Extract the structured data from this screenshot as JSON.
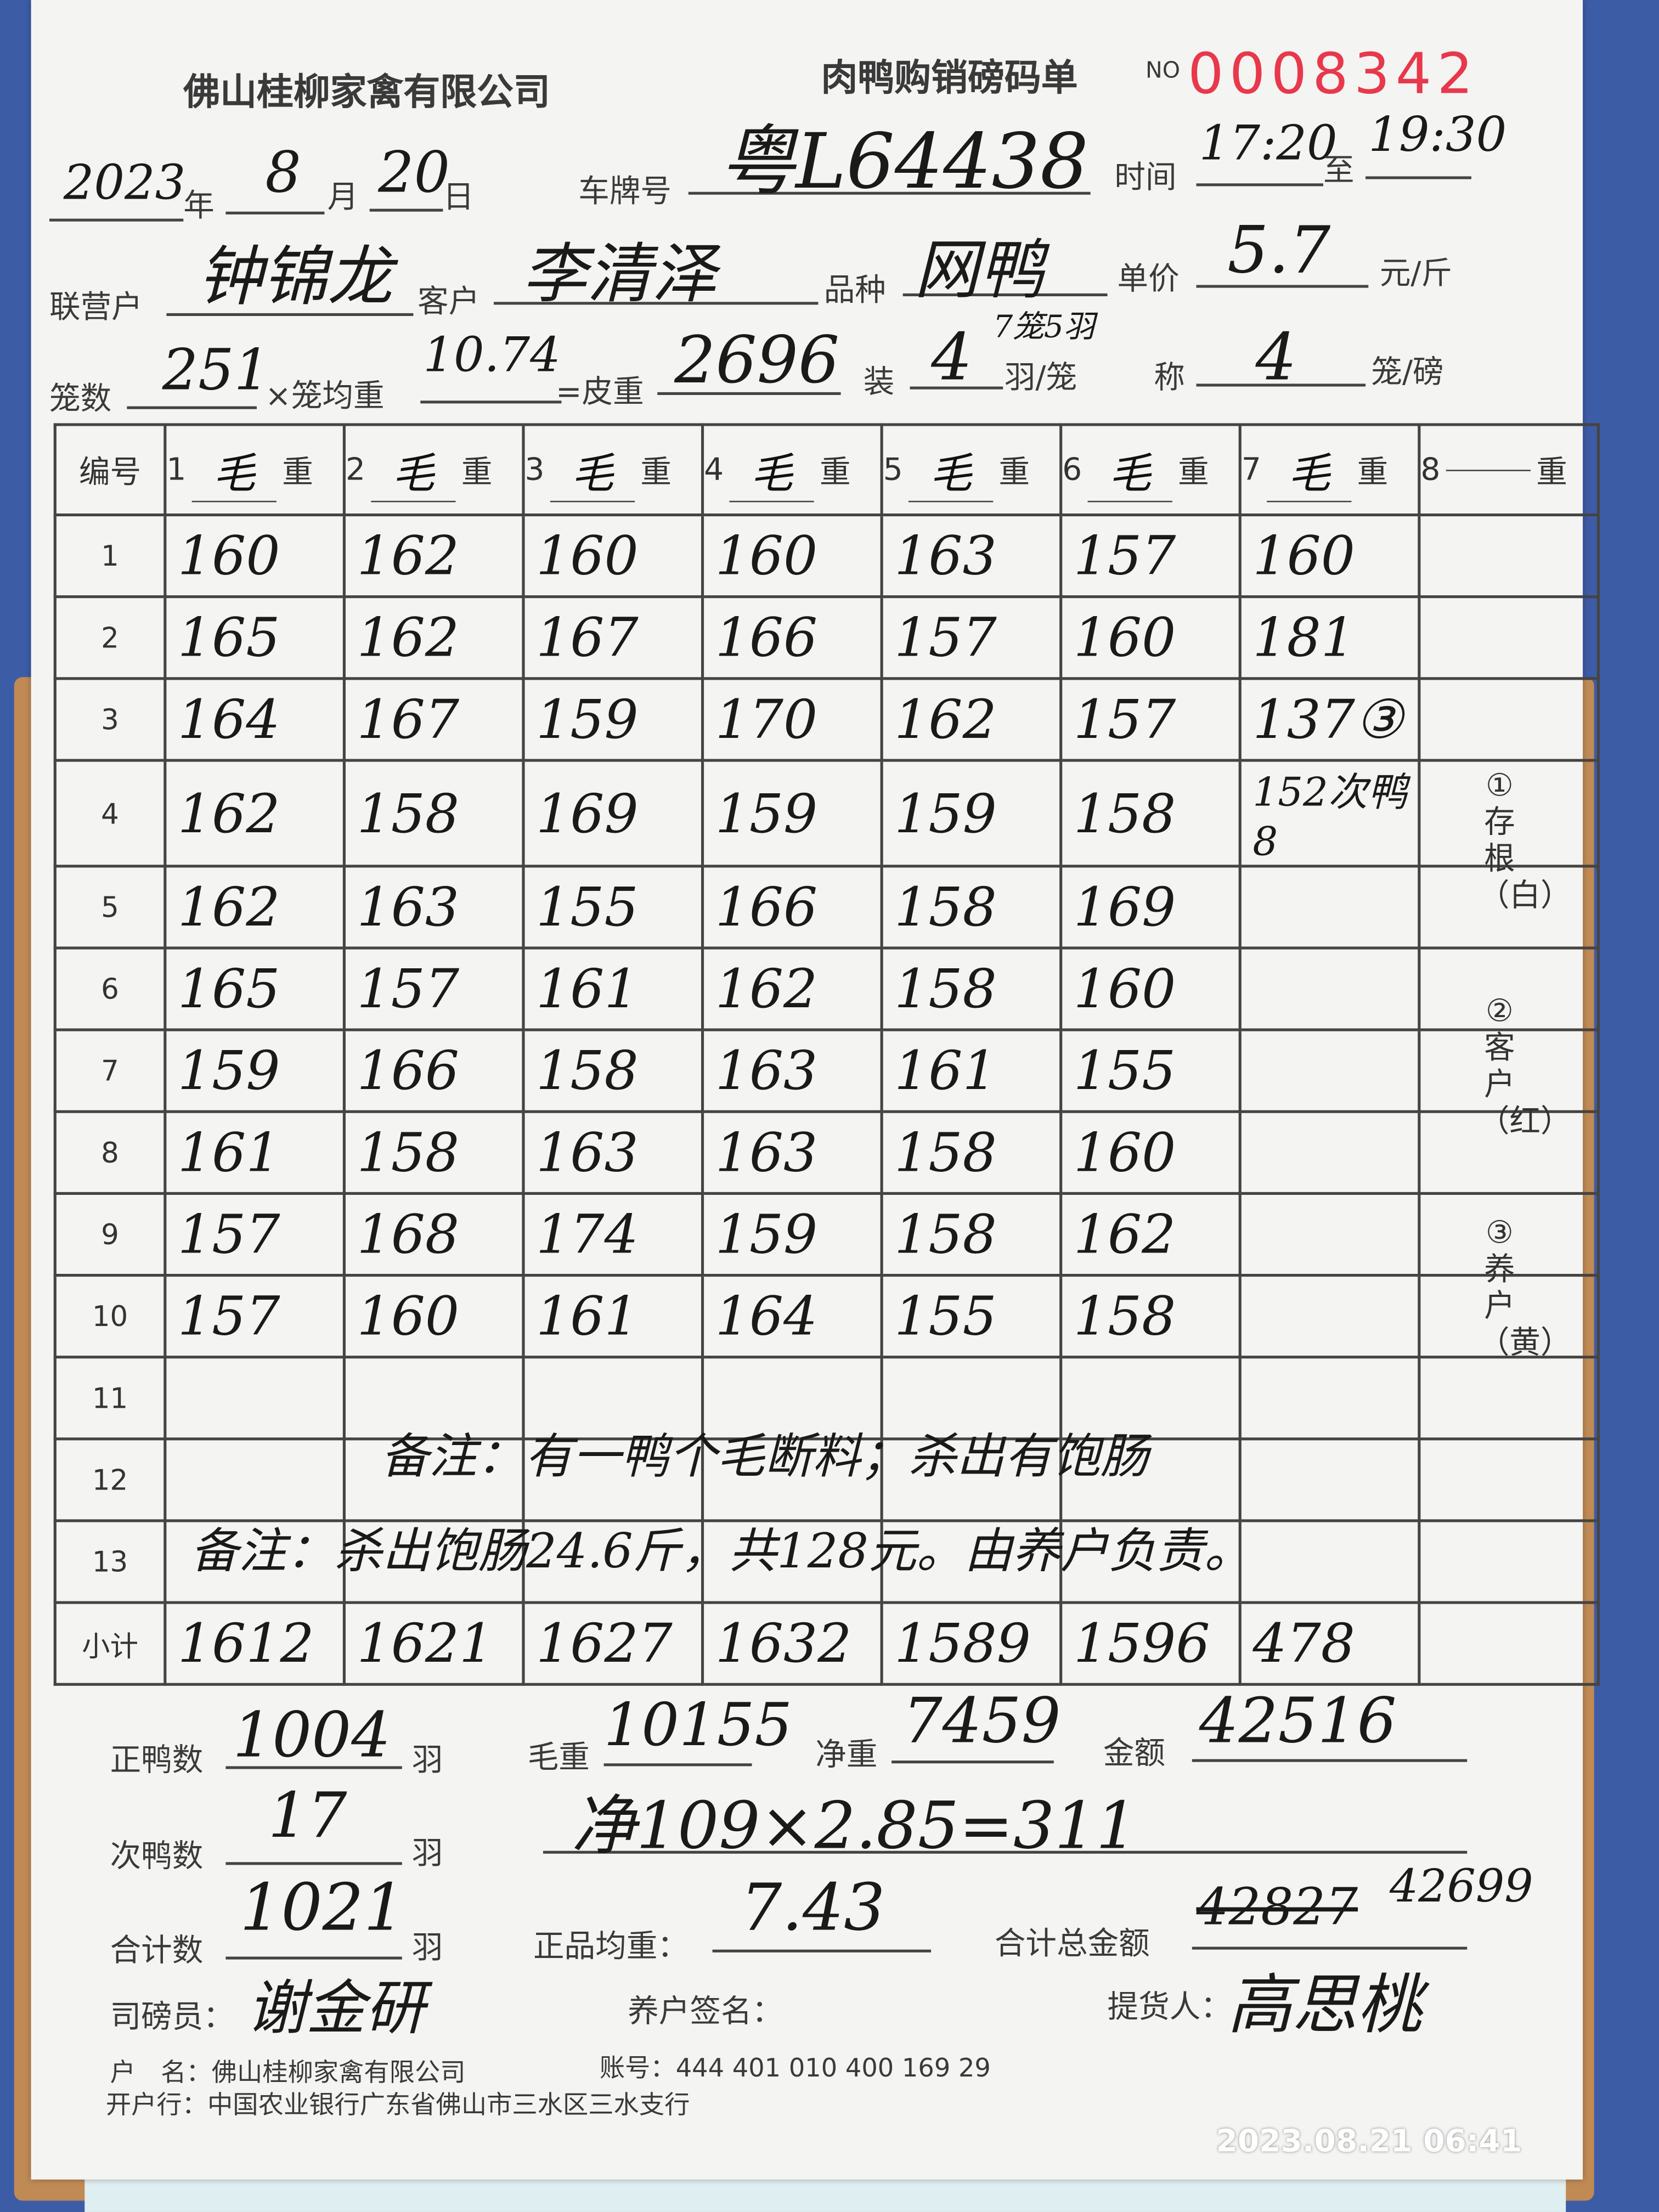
{
  "header": {
    "company": "佛山桂柳家禽有限公司",
    "form_title": "肉鸭购销磅码单",
    "no_label": "NO",
    "serial": "0008342"
  },
  "fields": {
    "year": "2023",
    "year_label": "年",
    "month": "8",
    "month_label": "月",
    "day": "20",
    "day_label": "日",
    "plate_label": "车牌号",
    "plate": "粤L64438",
    "time_label": "时间",
    "time_from": "17:20",
    "to_label": "至",
    "time_to": "19:30",
    "partner_label": "联营户",
    "partner": "钟锦龙",
    "customer_label": "客户",
    "customer": "李清泽",
    "breed_label": "品种",
    "breed": "网鸭",
    "price_label": "单价",
    "price": "5.7",
    "price_unit": "元/斤",
    "cages_label": "笼数",
    "cages": "251",
    "cage_avg_label": "×笼均重",
    "cage_avg": "10.74",
    "tare_label": "=皮重",
    "tare": "2696",
    "load_label": "装",
    "load": "4",
    "load_note": "7笼5羽",
    "load_unit": "羽/笼",
    "weigh_label": "称",
    "weigh": "4",
    "weigh_unit": "笼/磅"
  },
  "table": {
    "id_header": "编号",
    "weight_suffix": "重",
    "col_mark": "毛",
    "columns": [
      "1",
      "2",
      "3",
      "4",
      "5",
      "6",
      "7",
      "8"
    ],
    "rows": [
      "1",
      "2",
      "3",
      "4",
      "5",
      "6",
      "7",
      "8",
      "9",
      "10",
      "11",
      "12",
      "13"
    ],
    "subtotal_label": "小计",
    "cells": [
      [
        "160",
        "162",
        "160",
        "160",
        "163",
        "157",
        "160",
        ""
      ],
      [
        "165",
        "162",
        "167",
        "166",
        "157",
        "160",
        "181",
        ""
      ],
      [
        "164",
        "167",
        "159",
        "170",
        "162",
        "157",
        "137③",
        ""
      ],
      [
        "162",
        "158",
        "169",
        "159",
        "159",
        "158",
        "152次鸭8",
        ""
      ],
      [
        "162",
        "163",
        "155",
        "166",
        "158",
        "169",
        "",
        ""
      ],
      [
        "165",
        "157",
        "161",
        "162",
        "158",
        "160",
        "",
        ""
      ],
      [
        "159",
        "166",
        "158",
        "163",
        "161",
        "155",
        "",
        ""
      ],
      [
        "161",
        "158",
        "163",
        "163",
        "158",
        "160",
        "",
        ""
      ],
      [
        "157",
        "168",
        "174",
        "159",
        "158",
        "162",
        "",
        ""
      ],
      [
        "157",
        "160",
        "161",
        "164",
        "155",
        "158",
        "",
        ""
      ]
    ],
    "subtotals": [
      "1612",
      "1621",
      "1627",
      "1632",
      "1589",
      "1596",
      "478",
      ""
    ],
    "note_row12": "备注：有一鸭个毛断料；杀出有饱肠",
    "note_row13": "备注：杀出饱肠24.6斤，共128元。由养户负责。"
  },
  "copies": [
    "①存根（白）",
    "②客户（红）",
    "③养户（黄）"
  ],
  "summary": {
    "good_label": "正鸭数",
    "good": "1004",
    "unit": "羽",
    "gross_label": "毛重",
    "gross": "10155",
    "net_label": "净重",
    "net": "7459",
    "amount_label": "金额",
    "amount": "42516",
    "second_label": "次鸭数",
    "second": "17",
    "second_calc": "净109×2.85=311",
    "total_label": "合计数",
    "total": "1021",
    "avg_label": "正品均重：",
    "avg": "7.43",
    "grand_label": "合计总金额",
    "grand_struck": "42827",
    "grand": "42699",
    "weigher_label": "司磅员：",
    "farmer_label": "养户签名：",
    "picker_label": "提货人：",
    "weigher_sig": "谢金研",
    "picker_sig": "高思桃"
  },
  "footer": {
    "account_name": "户　名：佛山桂柳家禽有限公司",
    "account_no": "账号：444 401 010 400 169 29",
    "bank": "开户行：中国农业银行广东省佛山市三水区三水支行"
  },
  "timestamp": "2023.08.21 06:41"
}
